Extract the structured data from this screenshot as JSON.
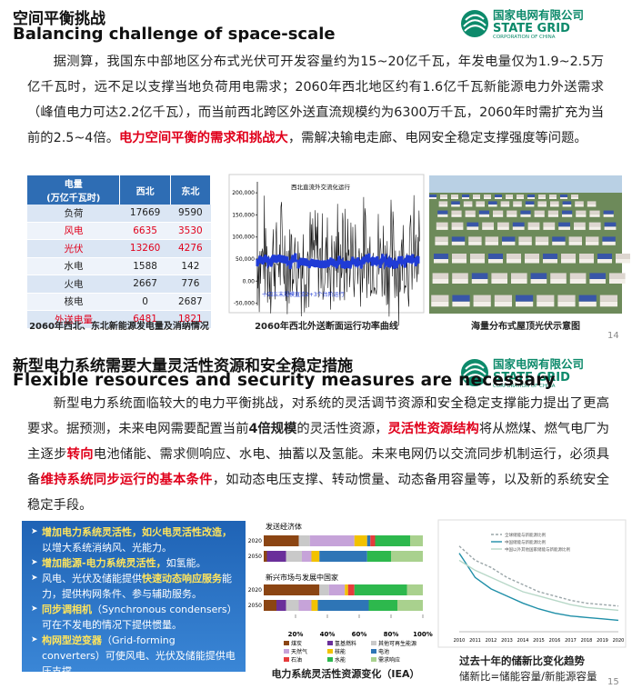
{
  "slide1": {
    "title_zh": "空间平衡挑战",
    "title_en": "Balancing challenge of space-scale",
    "logo": {
      "name_zh": "国家电网有限公司",
      "name_en": "STATE GRID",
      "sub": "CORPORATION OF CHINA"
    },
    "paragraph": [
      {
        "text": "据测算，我国东中部地区分布式光伏可开发容量约为15~20亿千瓦，年发电量仅为1.9~2.5万亿千瓦时，远不足以支撑当地负荷用电需求；2060年西北地区约有1.6亿千瓦新能源电力外送需求（峰值电力可达2.2亿千瓦），而当前西北跨区外送直流规模约为6300万千瓦，2060年时需扩充为当前的2.5~4倍。",
        "style": "plain"
      },
      {
        "text": "电力空间平衡的需求和挑战大",
        "style": "red"
      },
      {
        "text": "，需解决输电走廊、电网安全稳定支撑强度等问题。",
        "style": "plain"
      }
    ],
    "table": {
      "header": [
        "电量",
        "(万亿千瓦时)",
        "西北",
        "东北"
      ],
      "rows": [
        {
          "cells": [
            "负荷",
            17669,
            9590
          ],
          "highlight": false
        },
        {
          "cells": [
            "风电",
            6635,
            3530
          ],
          "highlight": true
        },
        {
          "cells": [
            "光伏",
            13260,
            4276
          ],
          "highlight": true
        },
        {
          "cells": [
            "水电",
            1588,
            142
          ],
          "highlight": false
        },
        {
          "cells": [
            "火电",
            2667,
            776
          ],
          "highlight": false
        },
        {
          "cells": [
            "核电",
            0,
            2687
          ],
          "highlight": false
        },
        {
          "cells": [
            "外送电量",
            6481,
            1821
          ],
          "highlight": true
        }
      ],
      "caption": "2060年西北、东北新能源发电量及消纳情况"
    },
    "power_chart": {
      "ylim": [
        -55000,
        225000
      ],
      "yticks": [
        {
          "value": 200000,
          "label": "200,000"
        },
        {
          "value": 150000,
          "label": "150,000"
        },
        {
          "value": 100000,
          "label": "100,000"
        },
        {
          "value": 50000,
          "label": "50,000"
        },
        {
          "value": 0,
          "label": "0.00"
        },
        {
          "value": -50000,
          "label": "-50,000"
        }
      ],
      "label_top": "西北直流外交流化运行",
      "label_bottom": "十四五末规模直流2+3个台阶运行",
      "caption": "2060年西北外送断面运行功率曲线"
    },
    "photo_caption": "海量分布式屋顶光伏示意图",
    "page": 14
  },
  "slide2": {
    "title_zh": "新型电力系统需要大量灵活性资源和安全稳定措施",
    "title_en": "Flexible resources and security measures are necessary",
    "logo": {
      "name_zh": "国家电网有限公司",
      "name_en": "STATE GRID",
      "sub": "CORPORATION OF CHINA"
    },
    "paragraph": [
      {
        "text": "新型电力系统面临较大的电力平衡挑战，对系统的灵活调节资源和安全稳定支撑能力提出了更高要求。据预测，未来电网需要配置当前",
        "style": "plain"
      },
      {
        "text": "4倍规模",
        "style": "bold"
      },
      {
        "text": "的灵活性资源，",
        "style": "plain"
      },
      {
        "text": "灵活性资源结构",
        "style": "red"
      },
      {
        "text": "将从燃煤、燃气电厂为主逐步",
        "style": "plain"
      },
      {
        "text": "转向",
        "style": "red"
      },
      {
        "text": "电池储能、需求侧响应、水电、抽蓄以及氢能。未来电网仍以交流同步机制运行，必须具备",
        "style": "plain"
      },
      {
        "text": "维持系统同步运行的基本条件",
        "style": "red"
      },
      {
        "text": "，如动态电压支撑、转动惯量、动态备用容量等，以及新的系统安全稳定手段。",
        "style": "plain"
      }
    ],
    "bullets": [
      [
        {
          "text": "增加电力系统灵活性，如火电灵活性改造，",
          "style": "bold"
        },
        {
          "text": "以增大系统消纳风、光能力。",
          "style": "plain"
        }
      ],
      [
        {
          "text": "增加能源-电力系统灵活性，",
          "style": "bold"
        },
        {
          "text": "如氢能。",
          "style": "plain"
        }
      ],
      [
        {
          "text": "风电、光伏及储能提供",
          "style": "plain"
        },
        {
          "text": "快速动态响应服务",
          "style": "bold"
        },
        {
          "text": "能力，提供构网条件、参与辅助服务。",
          "style": "plain"
        }
      ],
      [
        {
          "text": "同步调相机",
          "style": "bold"
        },
        {
          "text": "（Synchronous condensers）可在不发电的情况下提供惯量。",
          "style": "plain"
        }
      ],
      [
        {
          "text": "构网型逆变器",
          "style": "bold"
        },
        {
          "text": "（Grid-forming converters）可使风电、光伏及储能提供电压支撑。",
          "style": "plain"
        }
      ]
    ],
    "bar_chart": {
      "type": "bar",
      "groups": [
        {
          "name": "发送经济体",
          "years": [
            "2020",
            "2050"
          ]
        },
        {
          "name": "新兴市场与发展中国家",
          "years": [
            "2020",
            "2050"
          ]
        }
      ],
      "xlim": [
        0,
        100
      ],
      "xticks": [
        {
          "value": 20,
          "label": "20%"
        },
        {
          "value": 40,
          "label": "40%"
        },
        {
          "value": 60,
          "label": "60%"
        },
        {
          "value": 80,
          "label": "80%"
        },
        {
          "value": 100,
          "label": "100%"
        }
      ],
      "series": [
        {
          "name": "煤炭",
          "color": "#8b4513",
          "values": [
            22,
            2,
            35,
            8
          ]
        },
        {
          "name": "氢基燃料",
          "color": "#6a2f9a",
          "values": [
            0,
            12,
            0,
            6
          ]
        },
        {
          "name": "其他可再生能源",
          "color": "#c9c9c9",
          "values": [
            7,
            10,
            6,
            8
          ]
        },
        {
          "name": "天然气",
          "color": "#c6a3d9",
          "values": [
            28,
            6,
            10,
            8
          ]
        },
        {
          "name": "核能",
          "color": "#f2c200",
          "values": [
            8,
            5,
            2,
            4
          ]
        },
        {
          "name": "电池",
          "color": "#2e75b6",
          "values": [
            2,
            30,
            0,
            32
          ]
        },
        {
          "name": "石油",
          "color": "#e63c3c",
          "values": [
            3,
            0,
            4,
            0
          ]
        },
        {
          "name": "水能",
          "color": "#2db84d",
          "values": [
            22,
            15,
            33,
            18
          ]
        },
        {
          "name": "需求响应",
          "color": "#a9d18e",
          "values": [
            8,
            20,
            10,
            16
          ]
        }
      ],
      "caption": "电力系统灵活性资源变化（IEA）"
    },
    "line_chart": {
      "type": "line",
      "x": [
        2010,
        2011,
        2012,
        2013,
        2014,
        2015,
        2016,
        2017,
        2018,
        2019,
        2020
      ],
      "ylim": [
        0,
        0.7
      ],
      "series": [
        {
          "name": "全球储能与新能源比例",
          "color": "#9aa5a8",
          "dash": true,
          "values": [
            0.6,
            0.5,
            0.45,
            0.38,
            0.33,
            0.28,
            0.25,
            0.22,
            0.2,
            0.19,
            0.18
          ]
        },
        {
          "name": "中国储能与新能源比例",
          "color": "#1f8fa8",
          "dash": false,
          "values": [
            0.55,
            0.38,
            0.3,
            0.25,
            0.2,
            0.16,
            0.13,
            0.11,
            0.1,
            0.09,
            0.08
          ]
        },
        {
          "name": "中国以外其他国家储能与新能源比例",
          "color": "#b8d8c8",
          "dash": false,
          "values": [
            0.5,
            0.43,
            0.38,
            0.33,
            0.28,
            0.25,
            0.22,
            0.19,
            0.17,
            0.16,
            0.15
          ]
        }
      ],
      "caption": "过去十年的储新比变化趋势",
      "note": "储新比=储能容量/新能源容量"
    },
    "page": 15
  }
}
